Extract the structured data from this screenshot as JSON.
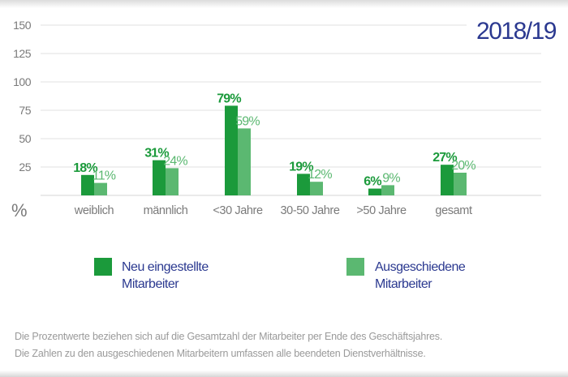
{
  "chart_data": {
    "type": "bar",
    "title": "2018/19",
    "ylabel": "%",
    "ylim": [
      0,
      150
    ],
    "yticks": [
      25,
      50,
      75,
      100,
      125,
      150
    ],
    "grid": true,
    "legend_position": "bottom",
    "categories": [
      "weiblich",
      "männlich",
      "<30 Jahre",
      "30-50 Jahre",
      ">50 Jahre",
      "gesamt"
    ],
    "series": [
      {
        "name": "Neu eingestellte Mitarbeiter",
        "name_lines": [
          "Neu eingestellte",
          "Mitarbeiter"
        ],
        "color": "#1b9a3b",
        "values": [
          18,
          31,
          79,
          19,
          6,
          27
        ],
        "labels": [
          "18%",
          "31%",
          "79%",
          "19%",
          "6%",
          "27%"
        ]
      },
      {
        "name": "Ausgeschiedene Mitarbeiter",
        "name_lines": [
          "Ausgeschiedene",
          "Mitarbeiter"
        ],
        "color": "#5bb871",
        "values": [
          11,
          24,
          59,
          12,
          9,
          20
        ],
        "labels": [
          "11%",
          "24%",
          "59%",
          "12%",
          "9%",
          "20%"
        ]
      }
    ]
  },
  "footnotes": [
    "Die Prozentwerte beziehen sich auf die Gesamtzahl der Mitarbeiter per Ende des Geschäftsjahres.",
    "Die Zahlen zu den ausgeschiedenen Mitarbeitern umfassen alle beendeten Dienstverhältnisse."
  ],
  "colors": {
    "title": "#2b3990",
    "axis_text": "#7a7a7a",
    "grid": "#ececec"
  }
}
